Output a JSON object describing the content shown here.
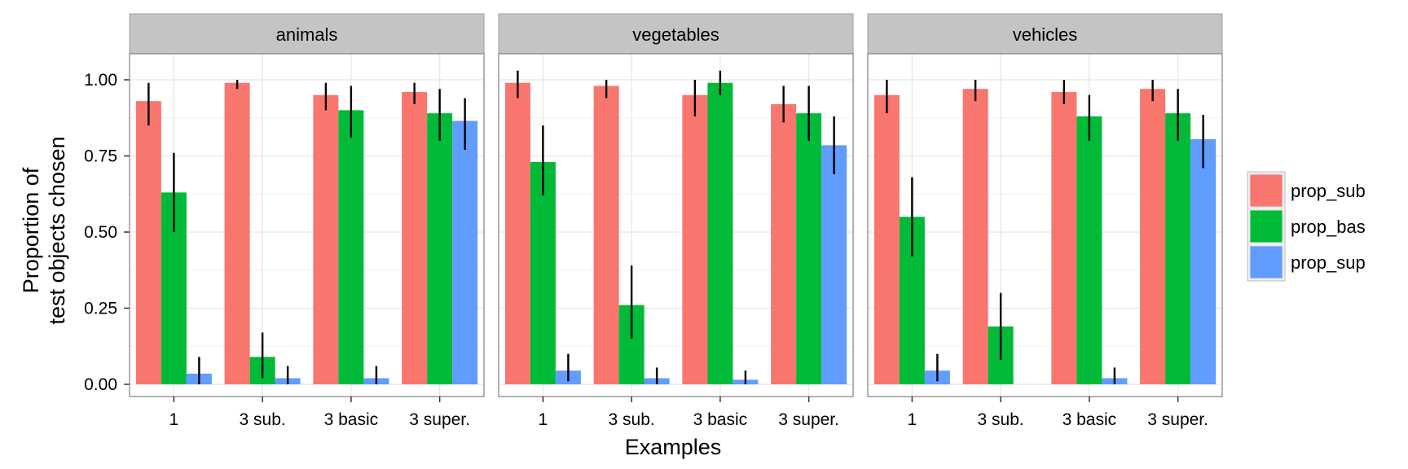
{
  "chart_data": {
    "type": "bar",
    "title": "",
    "xlabel": "Examples",
    "ylabel_lines": [
      "Proportion of",
      "test objects chosen"
    ],
    "ylim": [
      0,
      1.05
    ],
    "yticks": [
      "0.00",
      "0.25",
      "0.50",
      "0.75",
      "1.00"
    ],
    "categories": [
      "1",
      "3 sub.",
      "3 basic",
      "3 super."
    ],
    "grid": true,
    "legend_position": "right",
    "series": [
      {
        "name": "prop_sub",
        "color": "#F8766D"
      },
      {
        "name": "prop_bas",
        "color": "#00BA38"
      },
      {
        "name": "prop_sup",
        "color": "#619CFF"
      }
    ],
    "panels": [
      {
        "label": "animals",
        "values": [
          [
            0.93,
            0.63,
            0.035
          ],
          [
            0.99,
            0.09,
            0.02
          ],
          [
            0.95,
            0.9,
            0.02
          ],
          [
            0.96,
            0.89,
            0.865
          ]
        ],
        "errors": [
          [
            [
              0.85,
              0.99
            ],
            [
              0.5,
              0.76
            ],
            [
              0.0,
              0.09
            ]
          ],
          [
            [
              0.97,
              1.0
            ],
            [
              0.02,
              0.17
            ],
            [
              0.0,
              0.06
            ]
          ],
          [
            [
              0.9,
              0.99
            ],
            [
              0.81,
              0.98
            ],
            [
              0.0,
              0.06
            ]
          ],
          [
            [
              0.92,
              0.99
            ],
            [
              0.8,
              0.97
            ],
            [
              0.77,
              0.94
            ]
          ]
        ]
      },
      {
        "label": "vegetables",
        "values": [
          [
            0.99,
            0.73,
            0.045
          ],
          [
            0.98,
            0.26,
            0.02
          ],
          [
            0.95,
            0.99,
            0.015
          ],
          [
            0.92,
            0.89,
            0.785
          ]
        ],
        "errors": [
          [
            [
              0.94,
              1.03
            ],
            [
              0.62,
              0.85
            ],
            [
              0.01,
              0.1
            ]
          ],
          [
            [
              0.94,
              1.0
            ],
            [
              0.15,
              0.39
            ],
            [
              0.0,
              0.055
            ]
          ],
          [
            [
              0.88,
              1.0
            ],
            [
              0.95,
              1.03
            ],
            [
              0.0,
              0.045
            ]
          ],
          [
            [
              0.86,
              0.98
            ],
            [
              0.8,
              0.98
            ],
            [
              0.69,
              0.88
            ]
          ]
        ]
      },
      {
        "label": "vehicles",
        "values": [
          [
            0.95,
            0.55,
            0.045
          ],
          [
            0.97,
            0.19,
            0.0
          ],
          [
            0.96,
            0.88,
            0.02
          ],
          [
            0.97,
            0.89,
            0.805
          ]
        ],
        "errors": [
          [
            [
              0.89,
              1.0
            ],
            [
              0.42,
              0.68
            ],
            [
              0.01,
              0.1
            ]
          ],
          [
            [
              0.93,
              1.0
            ],
            [
              0.08,
              0.3
            ],
            null
          ],
          [
            [
              0.92,
              1.0
            ],
            [
              0.8,
              0.95
            ],
            [
              0.0,
              0.055
            ]
          ],
          [
            [
              0.93,
              1.0
            ],
            [
              0.8,
              0.97
            ],
            [
              0.71,
              0.885
            ]
          ]
        ]
      }
    ]
  }
}
